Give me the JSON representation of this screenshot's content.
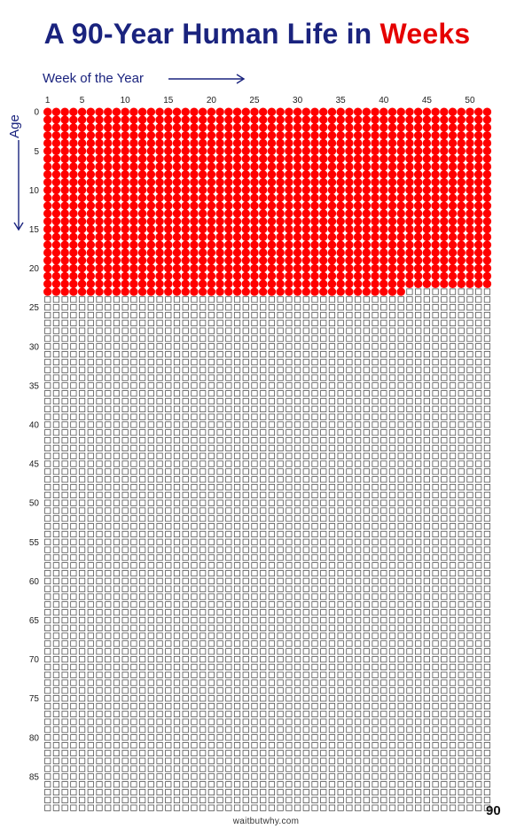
{
  "title": {
    "part1": "A 90-Year Human Life in ",
    "part2": "Weeks"
  },
  "colors": {
    "title_blue": "#1a237e",
    "title_red": "#e50000",
    "lived_fill": "#ff0000",
    "empty_stroke": "#555555"
  },
  "chart_data": {
    "type": "heatmap",
    "title": "A 90-Year Human Life in Weeks",
    "xlabel": "Week of the Year",
    "ylabel": "Age",
    "weeks_per_year": 52,
    "years": 90,
    "x_tick_labels": [
      "1",
      "5",
      "10",
      "15",
      "20",
      "25",
      "30",
      "35",
      "40",
      "45",
      "50"
    ],
    "y_tick_labels": [
      "0",
      "5",
      "10",
      "15",
      "20",
      "25",
      "30",
      "35",
      "40",
      "45",
      "50",
      "55",
      "60",
      "65",
      "70",
      "75",
      "80",
      "85"
    ],
    "filled_full_years": 23,
    "filled_weeks_final_year": 42,
    "filled_total_weeks": 1238,
    "end_label": "90",
    "legend": "none",
    "grid": false
  },
  "footer": "waitbutwhy.com",
  "page_number": "90"
}
